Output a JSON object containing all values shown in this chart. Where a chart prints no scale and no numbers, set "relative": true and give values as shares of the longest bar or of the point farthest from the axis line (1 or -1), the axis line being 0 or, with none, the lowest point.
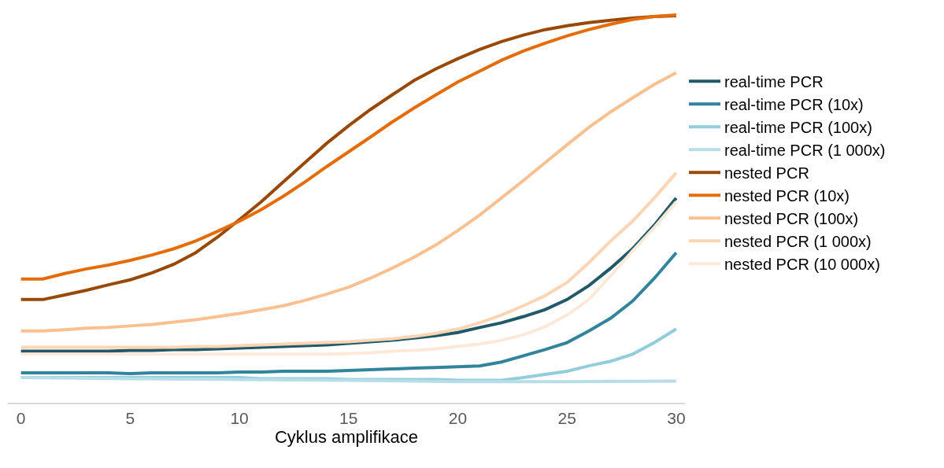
{
  "chart_data": {
    "type": "line",
    "relative": true,
    "xlabel": "Cyklus amplifikace",
    "x": [
      0,
      1,
      2,
      3,
      4,
      5,
      6,
      7,
      8,
      9,
      10,
      11,
      12,
      13,
      14,
      15,
      16,
      17,
      18,
      19,
      20,
      21,
      22,
      23,
      24,
      25,
      26,
      27,
      28,
      29,
      30
    ],
    "xlim": [
      -0.6,
      30.4
    ],
    "xticks": [
      0,
      5,
      10,
      15,
      20,
      25,
      30
    ],
    "legend": "right",
    "marker": "none",
    "line_style": "solid",
    "series": [
      {
        "name": "real-time PCR",
        "color": "#215968",
        "values": [
          0.133,
          0.133,
          0.133,
          0.133,
          0.133,
          0.135,
          0.135,
          0.137,
          0.137,
          0.139,
          0.141,
          0.143,
          0.145,
          0.147,
          0.149,
          0.153,
          0.157,
          0.161,
          0.167,
          0.173,
          0.181,
          0.194,
          0.206,
          0.222,
          0.24,
          0.266,
          0.302,
          0.347,
          0.397,
          0.458,
          0.528
        ]
      },
      {
        "name": "real-time PCR (10x)",
        "color": "#31849b",
        "values": [
          0.077,
          0.077,
          0.077,
          0.077,
          0.077,
          0.075,
          0.077,
          0.077,
          0.077,
          0.077,
          0.079,
          0.079,
          0.081,
          0.081,
          0.081,
          0.083,
          0.085,
          0.087,
          0.089,
          0.091,
          0.093,
          0.095,
          0.105,
          0.121,
          0.137,
          0.155,
          0.185,
          0.218,
          0.262,
          0.321,
          0.387
        ]
      },
      {
        "name": "real-time PCR (100x)",
        "color": "#92cddc",
        "values": [
          0.065,
          0.065,
          0.065,
          0.065,
          0.065,
          0.065,
          0.065,
          0.065,
          0.065,
          0.065,
          0.065,
          0.062,
          0.062,
          0.062,
          0.062,
          0.06,
          0.06,
          0.06,
          0.06,
          0.06,
          0.058,
          0.058,
          0.058,
          0.065,
          0.073,
          0.081,
          0.095,
          0.107,
          0.125,
          0.155,
          0.19
        ]
      },
      {
        "name": "real-time PCR (1 000x)",
        "color": "#b7dee8",
        "x": [
          0,
          5,
          10,
          15,
          20,
          25,
          30
        ],
        "values": [
          0.065,
          0.062,
          0.06,
          0.058,
          0.054,
          0.054,
          0.056
        ]
      },
      {
        "name": "nested PCR",
        "color": "#984807",
        "values": [
          0.266,
          0.266,
          0.278,
          0.29,
          0.304,
          0.317,
          0.335,
          0.357,
          0.387,
          0.427,
          0.472,
          0.518,
          0.569,
          0.619,
          0.669,
          0.714,
          0.756,
          0.794,
          0.831,
          0.861,
          0.887,
          0.911,
          0.931,
          0.948,
          0.962,
          0.972,
          0.98,
          0.986,
          0.992,
          0.996,
          0.998
        ]
      },
      {
        "name": "nested PCR (10x)",
        "color": "#e46c0a",
        "values": [
          0.319,
          0.319,
          0.333,
          0.345,
          0.355,
          0.367,
          0.381,
          0.397,
          0.417,
          0.442,
          0.468,
          0.498,
          0.532,
          0.569,
          0.609,
          0.647,
          0.685,
          0.724,
          0.76,
          0.794,
          0.827,
          0.855,
          0.883,
          0.907,
          0.927,
          0.946,
          0.962,
          0.976,
          0.988,
          0.996,
          1.0
        ]
      },
      {
        "name": "nested PCR (100x)",
        "color": "#fac090",
        "values": [
          0.185,
          0.185,
          0.188,
          0.192,
          0.194,
          0.198,
          0.202,
          0.208,
          0.214,
          0.222,
          0.23,
          0.24,
          0.25,
          0.264,
          0.28,
          0.298,
          0.321,
          0.347,
          0.375,
          0.407,
          0.444,
          0.484,
          0.528,
          0.573,
          0.619,
          0.665,
          0.71,
          0.75,
          0.786,
          0.821,
          0.851
        ]
      },
      {
        "name": "nested PCR (1 000x)",
        "color": "#fcd5b5",
        "values": [
          0.143,
          0.143,
          0.143,
          0.143,
          0.143,
          0.143,
          0.143,
          0.143,
          0.145,
          0.145,
          0.147,
          0.149,
          0.151,
          0.153,
          0.155,
          0.157,
          0.161,
          0.165,
          0.171,
          0.179,
          0.19,
          0.206,
          0.226,
          0.25,
          0.276,
          0.31,
          0.361,
          0.417,
          0.468,
          0.528,
          0.593
        ]
      },
      {
        "name": "nested PCR (10 000x)",
        "color": "#fde9d9",
        "values": [
          0.125,
          0.125,
          0.125,
          0.125,
          0.125,
          0.125,
          0.125,
          0.125,
          0.125,
          0.125,
          0.125,
          0.125,
          0.125,
          0.125,
          0.125,
          0.127,
          0.129,
          0.133,
          0.135,
          0.139,
          0.145,
          0.151,
          0.161,
          0.175,
          0.196,
          0.226,
          0.266,
          0.327,
          0.391,
          0.452,
          0.518
        ]
      }
    ]
  }
}
